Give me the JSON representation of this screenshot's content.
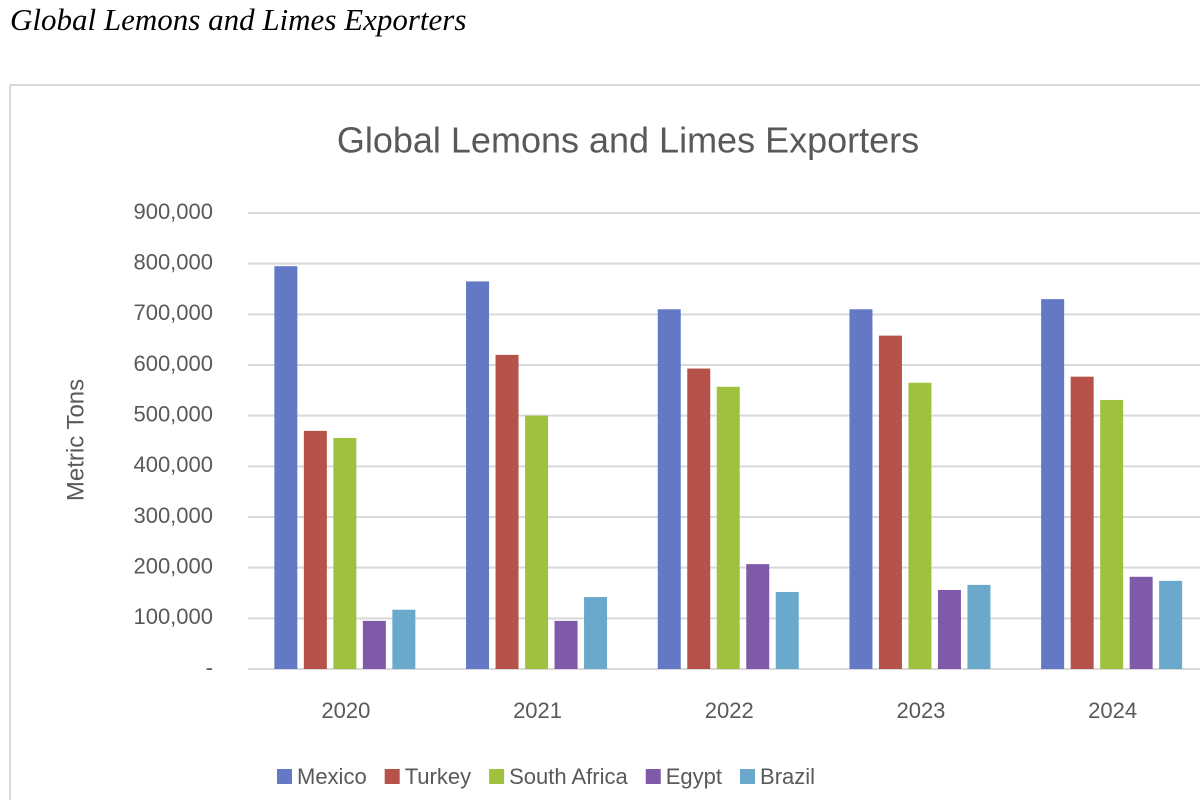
{
  "heading": "Global Lemons and Limes Exporters",
  "chart_data": {
    "type": "bar",
    "title": "Global Lemons and Limes Exporters",
    "y_label": "Metric Tons",
    "categories": [
      "2020",
      "2021",
      "2022",
      "2023",
      "2024"
    ],
    "series": [
      {
        "name": "Mexico",
        "color": "#6479c6",
        "values": [
          795000,
          765000,
          710000,
          710000,
          730000
        ]
      },
      {
        "name": "Turkey",
        "color": "#b5524a",
        "values": [
          470000,
          620000,
          593000,
          658000,
          577000
        ]
      },
      {
        "name": "South Africa",
        "color": "#9fc23e",
        "values": [
          456000,
          500000,
          557000,
          565000,
          531000
        ]
      },
      {
        "name": "Egypt",
        "color": "#7f5aa8",
        "values": [
          95000,
          95000,
          207000,
          156000,
          182000
        ]
      },
      {
        "name": "Brazil",
        "color": "#6aa8cc",
        "values": [
          117000,
          142000,
          152000,
          166000,
          174000
        ]
      }
    ],
    "ylim": [
      0,
      900000
    ],
    "yticks": [
      {
        "value": 0,
        "label": "-"
      },
      {
        "value": 100000,
        "label": "100,000"
      },
      {
        "value": 200000,
        "label": "200,000"
      },
      {
        "value": 300000,
        "label": "300,000"
      },
      {
        "value": 400000,
        "label": "400,000"
      },
      {
        "value": 500000,
        "label": "500,000"
      },
      {
        "value": 600000,
        "label": "600,000"
      },
      {
        "value": 700000,
        "label": "700,000"
      },
      {
        "value": 800000,
        "label": "800,000"
      },
      {
        "value": 900000,
        "label": "900,000"
      }
    ],
    "grid": true,
    "legend": "bottom"
  }
}
